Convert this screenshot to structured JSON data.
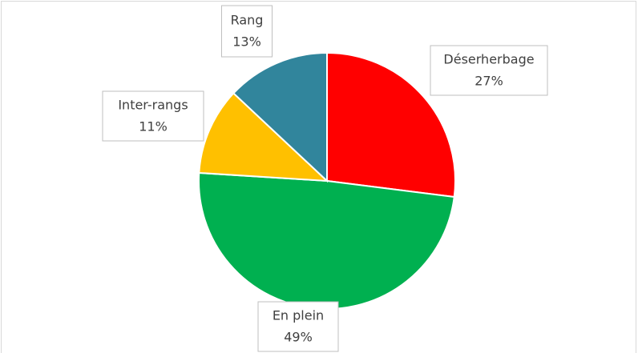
{
  "chart_data": {
    "type": "pie",
    "categories": [
      "Déserherbage",
      "En plein",
      "Inter-rangs",
      "Rang"
    ],
    "values": [
      27,
      49,
      11,
      13
    ],
    "value_labels": [
      "27%",
      "49%",
      "11%",
      "13%"
    ],
    "colors": [
      "#ff0000",
      "#00b050",
      "#ffc000",
      "#31859c"
    ]
  }
}
